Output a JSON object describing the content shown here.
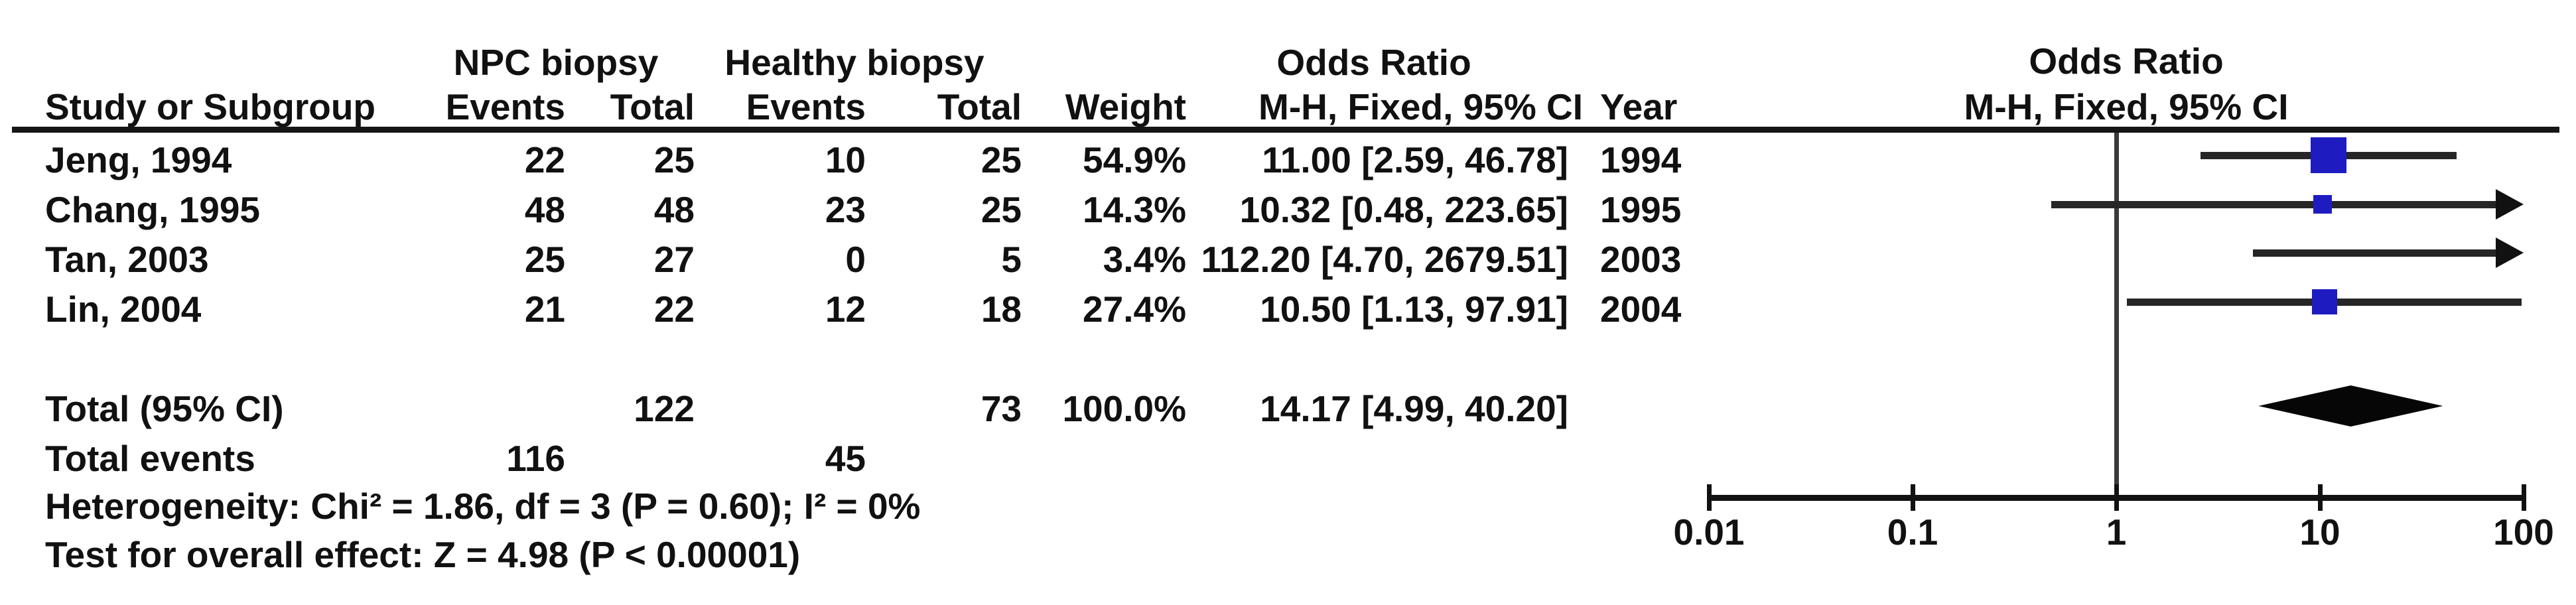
{
  "table": {
    "col_headers": {
      "group1": "NPC biopsy",
      "group2": "Healthy biopsy",
      "or_left": "Odds Ratio",
      "study": "Study or Subgroup",
      "events": "Events",
      "total": "Total",
      "weight": "Weight",
      "mh": "M-H, Fixed, 95% CI",
      "year": "Year"
    },
    "plot_header": {
      "title": "Odds Ratio",
      "subtitle": "M-H, Fixed, 95% CI"
    },
    "rows": [
      {
        "study": "Jeng, 1994",
        "events1": "22",
        "total1": "25",
        "events2": "10",
        "total2": "25",
        "weight": "54.9%",
        "or_ci": "11.00 [2.59, 46.78]",
        "year": "1994"
      },
      {
        "study": "Chang, 1995",
        "events1": "48",
        "total1": "48",
        "events2": "23",
        "total2": "25",
        "weight": "14.3%",
        "or_ci": "10.32 [0.48, 223.65]",
        "year": "1995"
      },
      {
        "study": "Tan, 2003",
        "events1": "25",
        "total1": "27",
        "events2": "0",
        "total2": "5",
        "weight": "3.4%",
        "or_ci": "112.20 [4.70, 2679.51]",
        "year": "2003"
      },
      {
        "study": "Lin, 2004",
        "events1": "21",
        "total1": "22",
        "events2": "12",
        "total2": "18",
        "weight": "27.4%",
        "or_ci": "10.50 [1.13, 97.91]",
        "year": "2004"
      }
    ],
    "total_row": {
      "label": "Total (95% CI)",
      "total1": "122",
      "total2": "73",
      "weight": "100.0%",
      "or_ci": "14.17 [4.99, 40.20]"
    },
    "total_events": {
      "label": "Total events",
      "events1": "116",
      "events2": "45"
    },
    "heterogeneity": "Heterogeneity: Chi² = 1.86, df = 3 (P = 0.60); I² = 0%",
    "overall_effect": "Test for overall effect: Z = 4.98 (P < 0.00001)"
  },
  "chart_data": {
    "type": "forest",
    "effect_measure": "Odds Ratio",
    "method": "M-H, Fixed, 95% CI",
    "x_scale": "log10",
    "axis_range": [
      0.01,
      100
    ],
    "axis_ticks": [
      0.01,
      0.1,
      1,
      10,
      100
    ],
    "axis_tick_labels": [
      "0.01",
      "0.1",
      "1",
      "10",
      "100"
    ],
    "null_line": 1,
    "studies": [
      {
        "name": "Jeng, 1994",
        "or": 11.0,
        "ci_low": 2.59,
        "ci_high": 46.78,
        "weight_pct": 54.9,
        "year": 1994
      },
      {
        "name": "Chang, 1995",
        "or": 10.32,
        "ci_low": 0.48,
        "ci_high": 223.65,
        "weight_pct": 14.3,
        "year": 1995
      },
      {
        "name": "Tan, 2003",
        "or": 112.2,
        "ci_low": 4.7,
        "ci_high": 2679.51,
        "weight_pct": 3.4,
        "year": 2003
      },
      {
        "name": "Lin, 2004",
        "or": 10.5,
        "ci_low": 1.13,
        "ci_high": 97.91,
        "weight_pct": 27.4,
        "year": 2004
      }
    ],
    "total": {
      "or": 14.17,
      "ci_low": 4.99,
      "ci_high": 40.2,
      "weight_pct": 100.0
    },
    "colors": {
      "square": "#1e1cc0",
      "ci_line": "#262626",
      "diamond": "#060606",
      "null_line": "#3a3a3a",
      "axis": "#111111"
    }
  }
}
